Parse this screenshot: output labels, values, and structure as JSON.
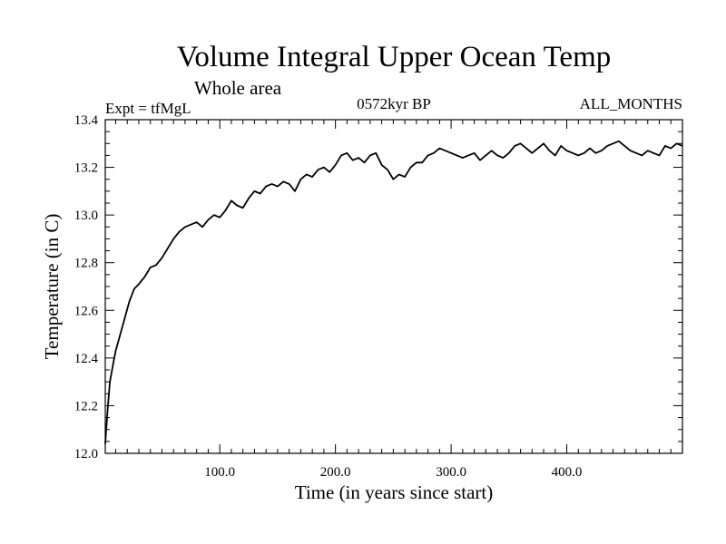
{
  "chart_data": {
    "type": "line",
    "title": "Volume Integral Upper Ocean Temp",
    "subtitle": "Whole area",
    "left_note": "Expt = tfMgL",
    "center_note": "0572kyr BP",
    "right_note": "ALL_MONTHS",
    "xlabel": "Time (in years since start)",
    "ylabel": "Temperature (in C)",
    "xlim": [
      1,
      500
    ],
    "ylim": [
      12.0,
      13.4
    ],
    "x_ticks": [
      100,
      200,
      300,
      400
    ],
    "x_tick_labels": [
      "100.0",
      "200.0",
      "300.0",
      "400.0"
    ],
    "y_ticks": [
      12.0,
      12.2,
      12.4,
      12.6,
      12.8,
      13.0,
      13.2,
      13.4
    ],
    "y_tick_labels": [
      "12.0",
      "12.2",
      "12.4",
      "12.6",
      "12.8",
      "13.0",
      "13.2",
      "13.4"
    ],
    "grid": false,
    "legend": "none",
    "line_color": "#000000",
    "series": [
      {
        "x": [
          1,
          3,
          5,
          8,
          10,
          14,
          18,
          22,
          26,
          30,
          35,
          40,
          45,
          50,
          55,
          60,
          65,
          70,
          75,
          80,
          85,
          90,
          95,
          100,
          105,
          110,
          115,
          120,
          125,
          130,
          135,
          140,
          145,
          150,
          155,
          160,
          165,
          170,
          175,
          180,
          185,
          190,
          195,
          200,
          205,
          210,
          215,
          220,
          225,
          230,
          235,
          240,
          245,
          250,
          255,
          260,
          265,
          270,
          275,
          280,
          285,
          290,
          295,
          300,
          305,
          310,
          315,
          320,
          325,
          330,
          335,
          340,
          345,
          350,
          355,
          360,
          365,
          370,
          375,
          380,
          385,
          390,
          395,
          400,
          405,
          410,
          415,
          420,
          425,
          430,
          435,
          440,
          445,
          450,
          455,
          460,
          465,
          470,
          475,
          480,
          485,
          490,
          495,
          500
        ],
        "y": [
          12.04,
          12.18,
          12.3,
          12.38,
          12.43,
          12.5,
          12.57,
          12.64,
          12.69,
          12.71,
          12.74,
          12.78,
          12.79,
          12.82,
          12.86,
          12.9,
          12.93,
          12.95,
          12.96,
          12.97,
          12.95,
          12.98,
          13.0,
          12.99,
          13.02,
          13.06,
          13.04,
          13.03,
          13.07,
          13.1,
          13.09,
          13.12,
          13.13,
          13.12,
          13.14,
          13.13,
          13.1,
          13.15,
          13.17,
          13.16,
          13.19,
          13.2,
          13.18,
          13.21,
          13.25,
          13.26,
          13.23,
          13.24,
          13.22,
          13.25,
          13.26,
          13.21,
          13.19,
          13.15,
          13.17,
          13.16,
          13.2,
          13.22,
          13.22,
          13.25,
          13.26,
          13.28,
          13.27,
          13.26,
          13.25,
          13.24,
          13.25,
          13.26,
          13.23,
          13.25,
          13.27,
          13.25,
          13.24,
          13.26,
          13.29,
          13.3,
          13.28,
          13.26,
          13.28,
          13.3,
          13.27,
          13.25,
          13.29,
          13.27,
          13.26,
          13.25,
          13.26,
          13.28,
          13.26,
          13.27,
          13.29,
          13.3,
          13.31,
          13.29,
          13.27,
          13.26,
          13.25,
          13.27,
          13.26,
          13.25,
          13.29,
          13.28,
          13.3,
          13.29
        ]
      }
    ]
  }
}
